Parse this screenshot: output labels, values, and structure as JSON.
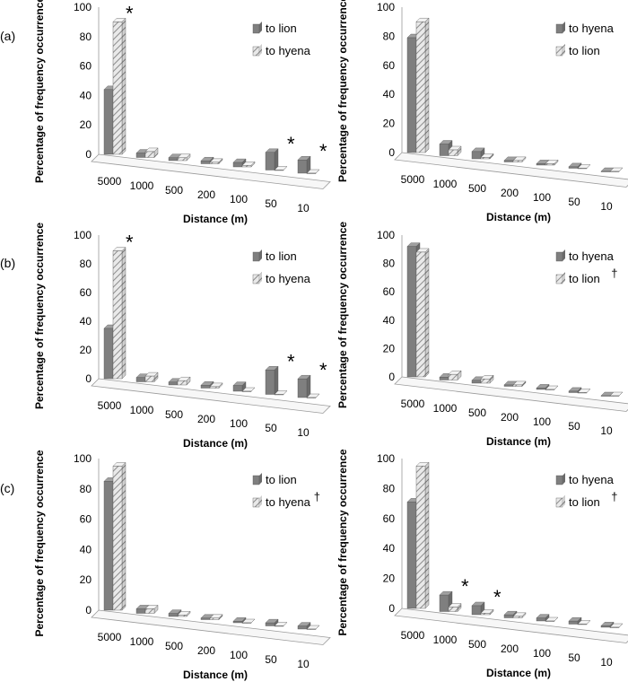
{
  "chart_data": [
    {
      "id": "a-left",
      "type": "bar",
      "panel_label": "(a)",
      "ylabel": "Percentage of frequency occurrence",
      "xlabel": "Distance (m)",
      "ylim": [
        0,
        100
      ],
      "yticks": [
        0,
        20,
        40,
        60,
        80,
        100
      ],
      "categories": [
        "5000",
        "1000",
        "500",
        "200",
        "100",
        "50",
        "10"
      ],
      "series": [
        {
          "name": "to lion",
          "style": "solid",
          "values": [
            44,
            3,
            2,
            2,
            3,
            12,
            9
          ]
        },
        {
          "name": "to hyena",
          "style": "striped",
          "values": [
            90,
            4,
            2,
            1,
            1,
            0,
            0
          ]
        }
      ],
      "legend": [
        "to lion",
        "to hyena"
      ],
      "legend_dagger": "",
      "significance": [
        "*",
        "",
        "",
        "",
        "",
        "*",
        "*"
      ]
    },
    {
      "id": "a-right",
      "type": "bar",
      "panel_label": "",
      "ylabel": "Percentage of frequency occurrence",
      "xlabel": "Distance (m)",
      "ylim": [
        0,
        100
      ],
      "yticks": [
        0,
        20,
        40,
        60,
        80,
        100
      ],
      "categories": [
        "5000",
        "1000",
        "500",
        "200",
        "100",
        "50",
        "10"
      ],
      "series": [
        {
          "name": "to hyena",
          "style": "solid",
          "values": [
            79,
            8,
            5,
            1,
            1,
            1,
            0
          ]
        },
        {
          "name": "to lion",
          "style": "striped",
          "values": [
            90,
            4,
            1,
            1,
            1,
            0,
            0
          ]
        }
      ],
      "legend": [
        "to hyena",
        "to lion"
      ],
      "legend_dagger": "",
      "significance": [
        "",
        "",
        "",
        "",
        "",
        "",
        ""
      ]
    },
    {
      "id": "b-left",
      "type": "bar",
      "panel_label": "(b)",
      "ylabel": "Percentage of frequency occurrence",
      "xlabel": "Distance (m)",
      "ylim": [
        0,
        100
      ],
      "yticks": [
        0,
        20,
        40,
        60,
        80,
        100
      ],
      "categories": [
        "5000",
        "1000",
        "500",
        "200",
        "100",
        "50",
        "10"
      ],
      "series": [
        {
          "name": "to lion",
          "style": "solid",
          "values": [
            35,
            3,
            2,
            2,
            4,
            17,
            13
          ]
        },
        {
          "name": "to hyena",
          "style": "striped",
          "values": [
            89,
            4,
            3,
            1,
            0,
            0,
            0
          ]
        }
      ],
      "legend": [
        "to lion",
        "to hyena"
      ],
      "legend_dagger": "",
      "significance": [
        "*",
        "",
        "",
        "",
        "",
        "*",
        "*"
      ]
    },
    {
      "id": "b-right",
      "type": "bar",
      "panel_label": "",
      "ylabel": "Percentage of frequency occurrence",
      "xlabel": "Distance (m)",
      "ylim": [
        0,
        100
      ],
      "yticks": [
        0,
        20,
        40,
        60,
        80,
        100
      ],
      "categories": [
        "5000",
        "1000",
        "500",
        "200",
        "100",
        "50",
        "10"
      ],
      "series": [
        {
          "name": "to hyena",
          "style": "solid",
          "values": [
            92,
            2,
            2,
            1,
            1,
            1,
            0
          ]
        },
        {
          "name": "to lion",
          "style": "striped",
          "values": [
            88,
            4,
            3,
            1,
            0,
            0,
            0
          ]
        }
      ],
      "legend": [
        "to hyena",
        "to lion"
      ],
      "legend_dagger": "†",
      "significance": [
        "",
        "",
        "",
        "",
        "",
        "",
        ""
      ]
    },
    {
      "id": "c-left",
      "type": "bar",
      "panel_label": "(c)",
      "ylabel": "Percentage of frequency occurrence",
      "xlabel": "Distance (m)",
      "ylim": [
        0,
        100
      ],
      "yticks": [
        0,
        20,
        40,
        60,
        80,
        100
      ],
      "categories": [
        "5000",
        "1000",
        "500",
        "200",
        "100",
        "50",
        "10"
      ],
      "series": [
        {
          "name": "to lion",
          "style": "solid",
          "values": [
            85,
            3,
            2,
            1,
            1,
            2,
            2
          ]
        },
        {
          "name": "to hyena",
          "style": "striped",
          "values": [
            95,
            3,
            1,
            1,
            0,
            0,
            0
          ]
        }
      ],
      "legend": [
        "to lion",
        "to hyena"
      ],
      "legend_dagger": "†",
      "significance": [
        "",
        "",
        "",
        "",
        "",
        "",
        ""
      ]
    },
    {
      "id": "c-right",
      "type": "bar",
      "panel_label": "",
      "ylabel": "Percentage of frequency occurrence",
      "xlabel": "Distance (m)",
      "ylim": [
        0,
        100
      ],
      "yticks": [
        0,
        20,
        40,
        60,
        80,
        100
      ],
      "categories": [
        "5000",
        "1000",
        "500",
        "200",
        "100",
        "50",
        "10"
      ],
      "series": [
        {
          "name": "to hyena",
          "style": "solid",
          "values": [
            71,
            11,
            6,
            2,
            2,
            2,
            1
          ]
        },
        {
          "name": "to lion",
          "style": "striped",
          "values": [
            95,
            3,
            1,
            1,
            0,
            0,
            0
          ]
        }
      ],
      "legend": [
        "to hyena",
        "to lion"
      ],
      "legend_dagger": "†",
      "significance": [
        "",
        "*",
        "*",
        "",
        "",
        "",
        ""
      ]
    }
  ]
}
